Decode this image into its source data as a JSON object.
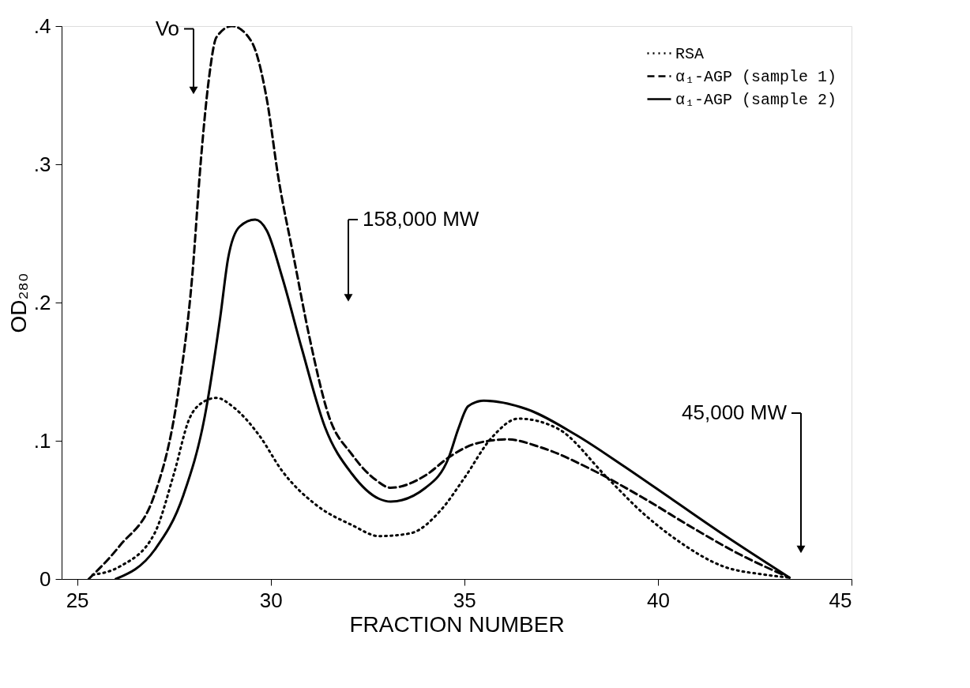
{
  "chart_data": {
    "type": "line",
    "xlabel": "FRACTION NUMBER",
    "ylabel": "OD₂₈₀",
    "xlim": [
      24.6,
      45
    ],
    "xticks": [
      25,
      30,
      35,
      40,
      45
    ],
    "ylim": [
      0,
      0.4
    ],
    "yticks": [
      {
        "value": 0,
        "label": "0"
      },
      {
        "value": 0.1,
        "label": ".1"
      },
      {
        "value": 0.2,
        "label": ".2"
      },
      {
        "value": 0.3,
        "label": ".3"
      },
      {
        "value": 0.4,
        "label": ".4"
      }
    ],
    "grid": false,
    "legend": "top right",
    "marker": "none",
    "series": [
      {
        "name": "RSA",
        "color": "#000000",
        "line_style": "dotted",
        "x": [
          25.4,
          26.1,
          27.0,
          27.5,
          27.9,
          28.2,
          28.6,
          29.05,
          29.7,
          30.3,
          31.2,
          32.1,
          32.8,
          33.6,
          34.4,
          35.0,
          35.7,
          36.4,
          37.4,
          38.7,
          39.6,
          40.4,
          41.7,
          42.8,
          43.4
        ],
        "values": [
          0.003,
          0.009,
          0.033,
          0.076,
          0.116,
          0.127,
          0.131,
          0.124,
          0.104,
          0.078,
          0.053,
          0.039,
          0.031,
          0.033,
          0.05,
          0.073,
          0.102,
          0.116,
          0.109,
          0.073,
          0.048,
          0.03,
          0.009,
          0.003,
          0.001
        ]
      },
      {
        "name": "α₁-AGP (sample 1)",
        "color": "#000000",
        "line_style": "dashed",
        "x": [
          25.3,
          26.1,
          27.0,
          27.6,
          27.97,
          28.2,
          28.4,
          28.6,
          29.0,
          29.5,
          29.9,
          30.2,
          30.6,
          31.0,
          31.5,
          32.1,
          32.7,
          33.1,
          34.0,
          34.6,
          35.3,
          36.1,
          37.0,
          38.3,
          39.6,
          40.9,
          42.1,
          43.4
        ],
        "values": [
          0,
          0.024,
          0.061,
          0.133,
          0.218,
          0.304,
          0.361,
          0.392,
          0.4,
          0.389,
          0.347,
          0.29,
          0.232,
          0.175,
          0.118,
          0.09,
          0.072,
          0.066,
          0.075,
          0.088,
          0.098,
          0.101,
          0.095,
          0.079,
          0.059,
          0.037,
          0.018,
          0.001
        ]
      },
      {
        "name": "α₁-AGP (sample 2)",
        "color": "#000000",
        "line_style": "solid",
        "x": [
          26.0,
          27.0,
          27.75,
          28.3,
          28.7,
          28.9,
          29.2,
          29.6,
          29.9,
          30.3,
          30.8,
          31.4,
          32.1,
          32.8,
          33.1,
          34.0,
          34.6,
          34.85,
          35.1,
          35.5,
          36.6,
          37.9,
          39.1,
          40.4,
          41.7,
          43.4
        ],
        "values": [
          0,
          0.021,
          0.061,
          0.118,
          0.19,
          0.232,
          0.255,
          0.26,
          0.252,
          0.218,
          0.167,
          0.11,
          0.076,
          0.058,
          0.056,
          0.066,
          0.088,
          0.109,
          0.125,
          0.129,
          0.123,
          0.104,
          0.082,
          0.057,
          0.032,
          0.001
        ]
      }
    ],
    "annotations": [
      "Vo",
      "158,000 MW",
      "45,000 MW"
    ]
  }
}
